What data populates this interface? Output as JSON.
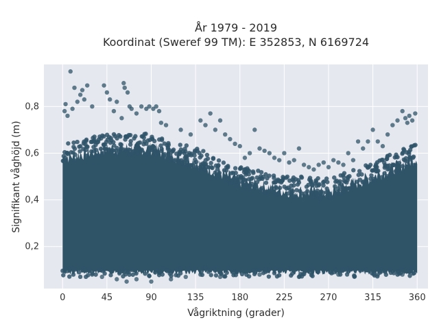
{
  "chart_data": {
    "type": "scatter",
    "title": "År 1979 - 2019",
    "subtitle": "Koordinat (Sweref 99 TM): E 352853, N 6169724",
    "xlabel": "Vågriktning (grader)",
    "ylabel": "Signifikant våghöjd (m)",
    "xlim": [
      -19,
      371
    ],
    "ylim": [
      0.02,
      0.98
    ],
    "x_ticks": [
      0,
      45,
      90,
      135,
      180,
      225,
      270,
      315,
      360
    ],
    "x_tick_labels": [
      "0",
      "45",
      "90",
      "135",
      "180",
      "225",
      "270",
      "315",
      "360"
    ],
    "y_ticks": [
      0.2,
      0.4,
      0.6,
      0.8
    ],
    "y_tick_labels": [
      "0,2",
      "0,4",
      "0,6",
      "0,8"
    ],
    "grid": true,
    "marker_color": "#2F5468",
    "plot_background": "#E6E8F0",
    "series": [
      {
        "x": [
          8,
          12,
          15,
          20,
          25,
          3,
          2,
          5,
          10,
          18,
          22,
          30,
          42,
          45,
          48,
          52,
          55,
          60,
          62,
          63,
          66,
          68,
          70,
          75,
          80,
          85,
          88,
          92,
          95,
          98,
          100,
          105,
          120,
          130,
          140,
          145,
          150,
          155,
          160,
          165,
          170,
          175,
          180,
          185,
          190,
          195,
          200,
          205,
          210,
          215,
          220,
          225,
          230,
          235,
          240,
          245,
          250,
          255,
          260,
          265,
          270,
          275,
          280,
          285,
          290,
          295,
          300,
          305,
          310,
          315,
          320,
          325,
          330,
          335,
          340,
          345,
          348,
          350,
          352,
          355,
          358,
          30,
          40,
          55,
          65,
          75,
          90,
          110,
          125,
          140,
          160,
          200,
          240,
          280,
          320,
          345
        ],
        "y": [
          0.95,
          0.88,
          0.82,
          0.87,
          0.89,
          0.81,
          0.78,
          0.76,
          0.79,
          0.85,
          0.83,
          0.8,
          0.89,
          0.86,
          0.83,
          0.78,
          0.82,
          0.75,
          0.9,
          0.88,
          0.86,
          0.8,
          0.79,
          0.77,
          0.8,
          0.79,
          0.8,
          0.79,
          0.8,
          0.78,
          0.73,
          0.72,
          0.7,
          0.68,
          0.74,
          0.72,
          0.77,
          0.7,
          0.74,
          0.68,
          0.66,
          0.64,
          0.63,
          0.58,
          0.6,
          0.7,
          0.62,
          0.61,
          0.6,
          0.58,
          0.57,
          0.6,
          0.56,
          0.57,
          0.62,
          0.55,
          0.54,
          0.53,
          0.55,
          0.56,
          0.54,
          0.57,
          0.56,
          0.55,
          0.6,
          0.57,
          0.65,
          0.62,
          0.65,
          0.7,
          0.65,
          0.63,
          0.68,
          0.72,
          0.74,
          0.78,
          0.75,
          0.73,
          0.76,
          0.74,
          0.77,
          0.08,
          0.07,
          0.06,
          0.05,
          0.06,
          0.05,
          0.06,
          0.07,
          0.08,
          0.07,
          0.08,
          0.07,
          0.08,
          0.08,
          0.08
        ]
      }
    ],
    "dense_band": {
      "x_range": [
        0,
        360
      ],
      "y_low": 0.09,
      "y_high_by_x": [
        [
          0,
          0.58
        ],
        [
          45,
          0.62
        ],
        [
          90,
          0.62
        ],
        [
          135,
          0.56
        ],
        [
          180,
          0.48
        ],
        [
          225,
          0.44
        ],
        [
          270,
          0.43
        ],
        [
          315,
          0.5
        ],
        [
          360,
          0.58
        ]
      ]
    }
  }
}
